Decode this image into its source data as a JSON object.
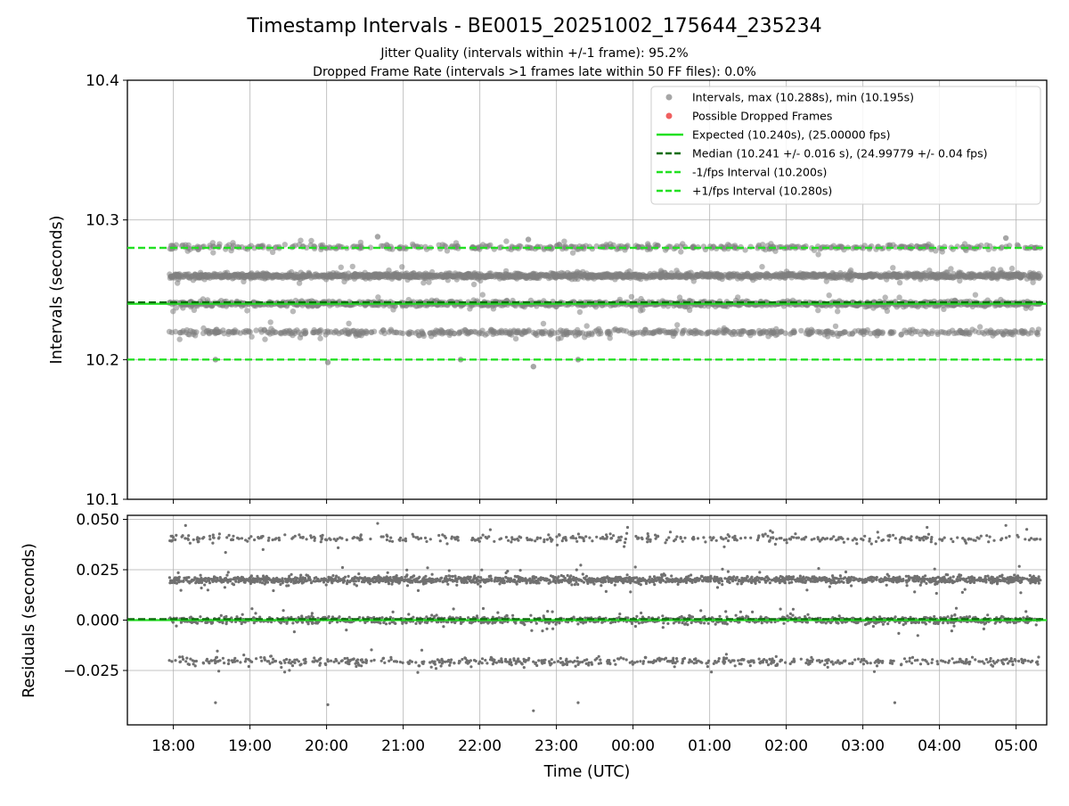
{
  "chart_data": [
    {
      "type": "scatter",
      "title": "Timestamp Intervals - BE0015_20251002_175644_235234",
      "subtitle_lines": [
        "Jitter Quality (intervals within +/-1 frame): 95.2%",
        "Dropped Frame Rate (intervals >1 frames late within 50 FF files): 0.0%"
      ],
      "ylabel": "Intervals (seconds)",
      "ylim": [
        10.1,
        10.4
      ],
      "yticks": [
        "10.1",
        "10.2",
        "10.3",
        "10.4"
      ],
      "ytick_values": [
        10.1,
        10.2,
        10.3,
        10.4
      ],
      "grid": true,
      "legend_position": "top-right",
      "legend": [
        {
          "label": "Intervals, max (10.288s), min (10.195s)",
          "kind": "dot",
          "color": "#a6a6a6"
        },
        {
          "label": "Possible Dropped Frames",
          "kind": "dot",
          "color": "#f06060"
        },
        {
          "label": "Expected (10.240s), (25.00000 fps)",
          "kind": "line",
          "color": "#22e022"
        },
        {
          "label": "Median (10.241 +/- 0.016 s), (24.99779 +/- 0.04 fps)",
          "kind": "dash",
          "color": "#0b6e0b"
        },
        {
          "label": "-1/fps Interval (10.200s)",
          "kind": "dash",
          "color": "#22e022"
        },
        {
          "label": "+1/fps Interval (10.280s)",
          "kind": "dash",
          "color": "#22e022"
        }
      ],
      "reference_lines": [
        {
          "name": "expected",
          "y": 10.24,
          "style": "solid",
          "color": "#22e022"
        },
        {
          "name": "median",
          "y": 10.241,
          "style": "dashed",
          "color": "#0b6e0b"
        },
        {
          "name": "minus-1fps",
          "y": 10.2,
          "style": "dashed",
          "color": "#22e022"
        },
        {
          "name": "plus-1fps",
          "y": 10.28,
          "style": "dashed",
          "color": "#22e022"
        }
      ],
      "series_color": "#808080",
      "data_summary": {
        "max": 10.288,
        "min": 10.195,
        "expected": 10.24,
        "median": 10.241,
        "median_std": 0.016
      },
      "x_start": "17:56:44",
      "x_end": "05:19:00",
      "interval_levels": [
        {
          "y": 10.2195,
          "weight": 0.14
        },
        {
          "y": 10.24,
          "weight": 0.3
        },
        {
          "y": 10.26,
          "weight": 0.42
        },
        {
          "y": 10.2805,
          "weight": 0.09
        }
      ],
      "notable_points": [
        {
          "x": "22:42",
          "y": 10.195
        },
        {
          "x": "20:01",
          "y": 10.198
        },
        {
          "x": "18:33",
          "y": 10.2
        },
        {
          "x": "21:45",
          "y": 10.2
        },
        {
          "x": "23:17",
          "y": 10.2
        },
        {
          "x": "20:40",
          "y": 10.288
        },
        {
          "x": "04:52",
          "y": 10.287
        },
        {
          "x": "22:38",
          "y": 10.286
        }
      ]
    },
    {
      "type": "scatter",
      "ylabel": "Residuals (seconds)",
      "xlabel": "Time (UTC)",
      "ylim": [
        -0.052,
        0.052
      ],
      "yticks": [
        "−0.025",
        "0.000",
        "0.025",
        "0.050"
      ],
      "ytick_values": [
        -0.025,
        0,
        0.025,
        0.05
      ],
      "xticks": [
        "18:00",
        "19:00",
        "20:00",
        "21:00",
        "22:00",
        "23:00",
        "00:00",
        "01:00",
        "02:00",
        "03:00",
        "04:00",
        "05:00"
      ],
      "grid": true,
      "reference_lines": [
        {
          "name": "zero",
          "y": 0.0,
          "style": "solid",
          "color": "#22e022"
        },
        {
          "name": "median-residual",
          "y": 0.0005,
          "style": "dashed",
          "color": "#0b6e0b"
        }
      ],
      "series_color": "#707070",
      "residual_levels": [
        {
          "y": -0.0205,
          "weight": 0.14
        },
        {
          "y": 0.0,
          "weight": 0.3
        },
        {
          "y": 0.02,
          "weight": 0.42
        },
        {
          "y": 0.0405,
          "weight": 0.09
        }
      ],
      "notable_points": [
        {
          "x": "22:42",
          "y": -0.045
        },
        {
          "x": "20:01",
          "y": -0.042
        },
        {
          "x": "18:33",
          "y": -0.041
        },
        {
          "x": "23:17",
          "y": -0.041
        },
        {
          "x": "03:25",
          "y": -0.041
        },
        {
          "x": "20:40",
          "y": 0.048
        },
        {
          "x": "04:52",
          "y": 0.047
        }
      ]
    }
  ]
}
